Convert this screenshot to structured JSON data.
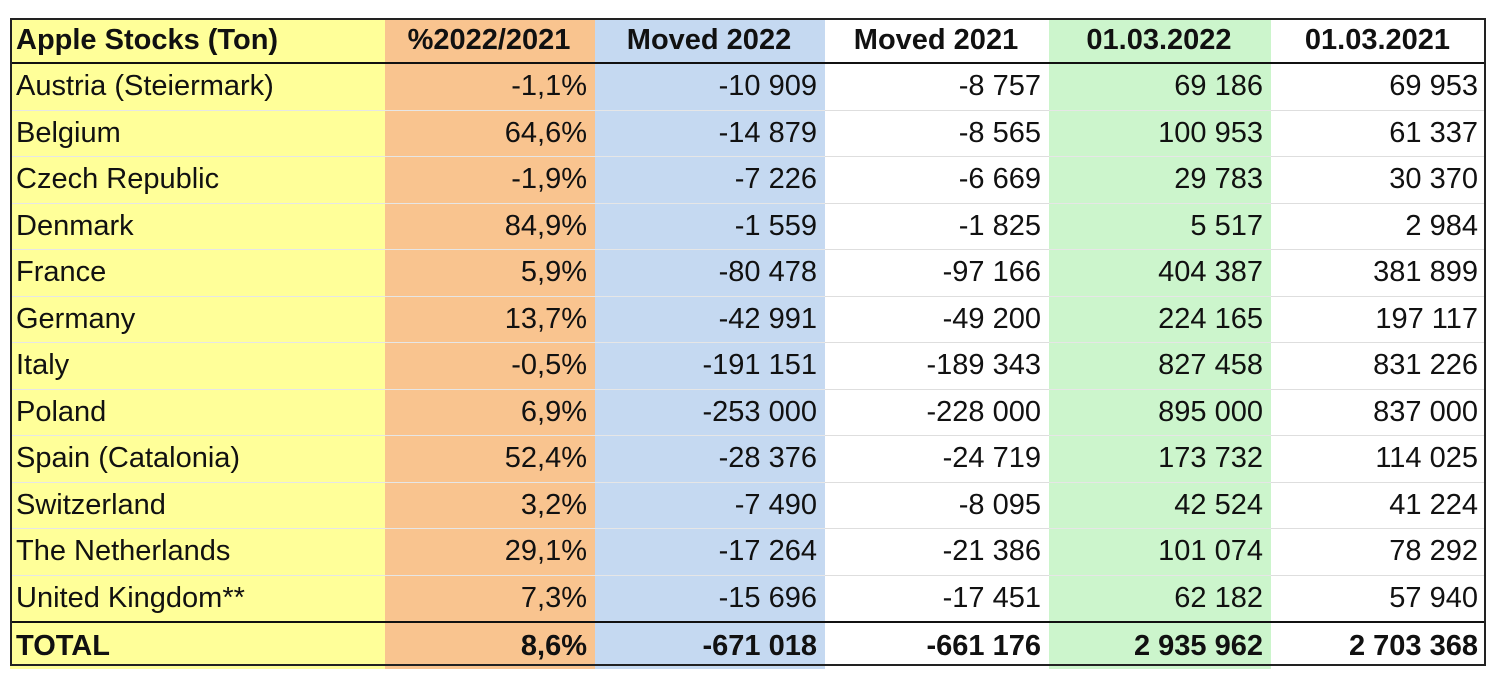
{
  "columns": [
    "Apple Stocks (Ton)",
    "%2022/2021",
    "Moved 2022",
    "Moved 2021",
    "01.03.2022",
    "01.03.2021"
  ],
  "rows": [
    [
      "Austria (Steiermark)",
      "-1,1%",
      "-10 909",
      "-8 757",
      "69 186",
      "69 953"
    ],
    [
      "Belgium",
      "64,6%",
      "-14 879",
      "-8 565",
      "100 953",
      "61 337"
    ],
    [
      "Czech Republic",
      "-1,9%",
      "-7 226",
      "-6 669",
      "29 783",
      "30 370"
    ],
    [
      "Denmark",
      "84,9%",
      "-1 559",
      "-1 825",
      "5 517",
      "2 984"
    ],
    [
      "France",
      "5,9%",
      "-80 478",
      "-97 166",
      "404 387",
      "381 899"
    ],
    [
      "Germany",
      "13,7%",
      "-42 991",
      "-49 200",
      "224 165",
      "197 117"
    ],
    [
      "Italy",
      "-0,5%",
      "-191 151",
      "-189 343",
      "827 458",
      "831 226"
    ],
    [
      "Poland",
      "6,9%",
      "-253 000",
      "-228 000",
      "895 000",
      "837 000"
    ],
    [
      "Spain (Catalonia)",
      "52,4%",
      "-28 376",
      "-24 719",
      "173 732",
      "114 025"
    ],
    [
      "Switzerland",
      "3,2%",
      "-7 490",
      "-8 095",
      "42 524",
      "41 224"
    ],
    [
      "The Netherlands",
      "29,1%",
      "-17 264",
      "-21 386",
      "101 074",
      "78 292"
    ],
    [
      "United Kingdom**",
      "7,3%",
      "-15 696",
      "-17 451",
      "62 182",
      "57 940"
    ]
  ],
  "total": [
    "TOTAL",
    "8,6%",
    "-671 018",
    "-661 176",
    "2 935 962",
    "2 703 368"
  ],
  "colors": {
    "col0": "#ffff99",
    "col1": "#f9c48f",
    "col2": "#c5d9f1",
    "col3": "#ffffff",
    "col4": "#ccf5cc",
    "col5": "#ffffff"
  }
}
